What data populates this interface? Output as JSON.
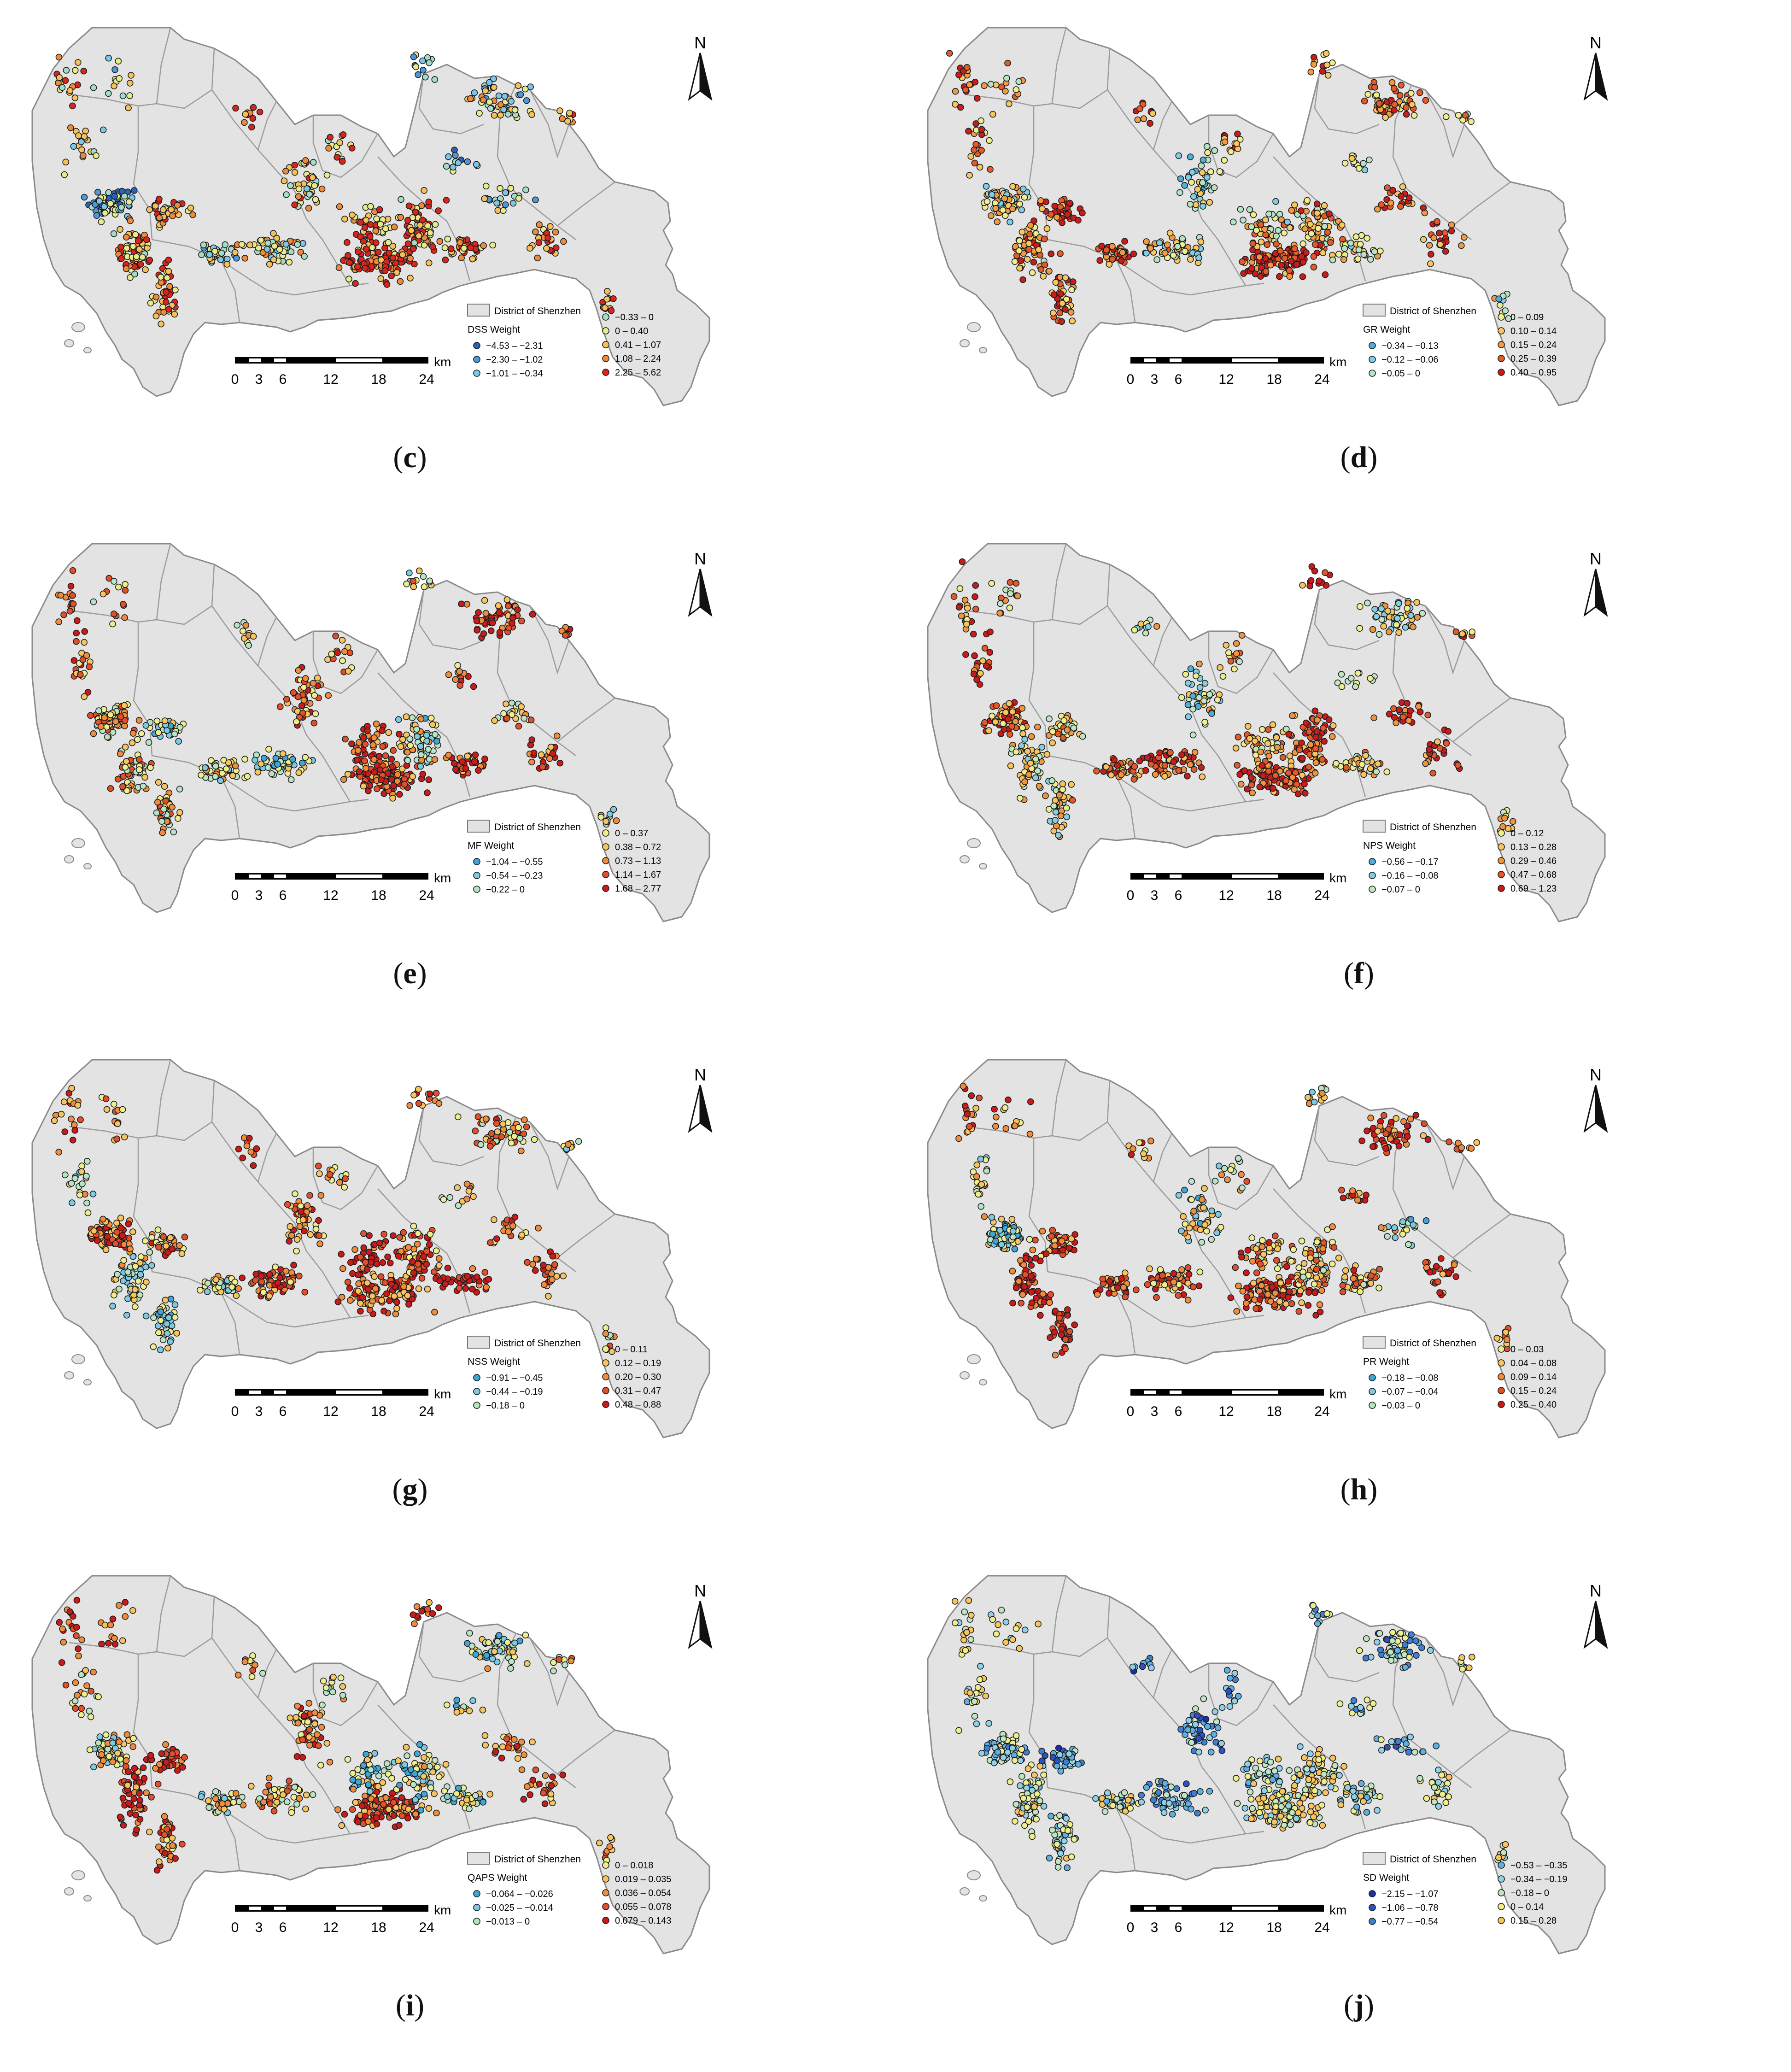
{
  "common": {
    "district_label": "District of Shenzhen",
    "scale_ticks": [
      "0",
      "3",
      "6",
      "12",
      "18",
      "24"
    ],
    "scale_unit": "km",
    "north_label": "N",
    "land_color": "#e3e3e3",
    "outline_color": "#8a8a8a"
  },
  "panels": [
    {
      "label": "c",
      "legend_title": "DSS Weight",
      "classes": [
        {
          "range": "−4.53 – −2.31",
          "color": "#2c62b8"
        },
        {
          "range": "−2.30 – −1.02",
          "color": "#4f97d6"
        },
        {
          "range": "−1.01 – −0.34",
          "color": "#7cc6ea"
        },
        {
          "range": "−0.33 – 0",
          "color": "#a3dcc7"
        },
        {
          "range": "0 – 0.40",
          "color": "#e7ec8a"
        },
        {
          "range": "0.41 – 1.07",
          "color": "#f6c15a"
        },
        {
          "range": "1.08 – 2.24",
          "color": "#ef8a3b"
        },
        {
          "range": "2.25 – 5.62",
          "color": "#d8261e"
        }
      ]
    },
    {
      "label": "d",
      "legend_title": "GR Weight",
      "classes": [
        {
          "range": "−0.34 – −0.13",
          "color": "#4fb0d8"
        },
        {
          "range": "−0.12 – −0.06",
          "color": "#7fcde6"
        },
        {
          "range": "−0.05 – 0",
          "color": "#b5e3c6"
        },
        {
          "range": "0 – 0.09",
          "color": "#eeee8c"
        },
        {
          "range": "0.10 – 0.14",
          "color": "#f7c760"
        },
        {
          "range": "0.15 – 0.24",
          "color": "#f09a44"
        },
        {
          "range": "0.25 – 0.39",
          "color": "#e35a2b"
        },
        {
          "range": "0.40 – 0.95",
          "color": "#c91d1d"
        }
      ]
    },
    {
      "label": "e",
      "legend_title": "MF Weight",
      "classes": [
        {
          "range": "−1.04 – −0.55",
          "color": "#3fa6d6"
        },
        {
          "range": "−0.54 – −0.23",
          "color": "#7ccbe3"
        },
        {
          "range": "−0.22 – 0",
          "color": "#b7e4c4"
        },
        {
          "range": "0 – 0.37",
          "color": "#eeee8c"
        },
        {
          "range": "0.38 – 0.72",
          "color": "#f7c45e"
        },
        {
          "range": "0.73 – 1.13",
          "color": "#ef8d3c"
        },
        {
          "range": "1.14 – 1.67",
          "color": "#e0502a"
        },
        {
          "range": "1.68 – 2.77",
          "color": "#c81b1b"
        }
      ]
    },
    {
      "label": "f",
      "legend_title": "NPS Weight",
      "classes": [
        {
          "range": "−0.56 – −0.17",
          "color": "#4ab0d8"
        },
        {
          "range": "−0.16 – −0.08",
          "color": "#85cfe4"
        },
        {
          "range": "−0.07 – 0",
          "color": "#bfe6c2"
        },
        {
          "range": "0 – 0.12",
          "color": "#eeee8c"
        },
        {
          "range": "0.13 – 0.28",
          "color": "#f7c45e"
        },
        {
          "range": "0.29 – 0.46",
          "color": "#ef953f"
        },
        {
          "range": "0.47 – 0.68",
          "color": "#e05a2c"
        },
        {
          "range": "0.69 – 1.23",
          "color": "#c81b1b"
        }
      ]
    },
    {
      "label": "g",
      "legend_title": "NSS Weight",
      "classes": [
        {
          "range": "−0.91 – −0.45",
          "color": "#3fa6d6"
        },
        {
          "range": "−0.44 – −0.19",
          "color": "#7ccbe3"
        },
        {
          "range": "−0.18 – 0",
          "color": "#b7e4c4"
        },
        {
          "range": "0 – 0.11",
          "color": "#eeee8c"
        },
        {
          "range": "0.12 – 0.19",
          "color": "#f7c45e"
        },
        {
          "range": "0.20 – 0.30",
          "color": "#ef8d3c"
        },
        {
          "range": "0.31 – 0.47",
          "color": "#e0502a"
        },
        {
          "range": "0.48 – 0.88",
          "color": "#c81b1b"
        }
      ]
    },
    {
      "label": "h",
      "legend_title": "PR Weight",
      "classes": [
        {
          "range": "−0.18 – −0.08",
          "color": "#3fa6d6"
        },
        {
          "range": "−0.07 – −0.04",
          "color": "#7ccbe3"
        },
        {
          "range": "−0.03 – 0",
          "color": "#b7e4c4"
        },
        {
          "range": "0 – 0.03",
          "color": "#eeee8c"
        },
        {
          "range": "0.04 – 0.08",
          "color": "#f7c45e"
        },
        {
          "range": "0.09 – 0.14",
          "color": "#ef8d3c"
        },
        {
          "range": "0.15 – 0.24",
          "color": "#e0502a"
        },
        {
          "range": "0.25 – 0.40",
          "color": "#c81b1b"
        }
      ]
    },
    {
      "label": "i",
      "legend_title": "QAPS Weight",
      "classes": [
        {
          "range": "−0.064 – −0.026",
          "color": "#3fa6d6"
        },
        {
          "range": "−0.025 – −0.014",
          "color": "#7ccbe3"
        },
        {
          "range": "−0.013 – 0",
          "color": "#b7e4c4"
        },
        {
          "range": "0 – 0.018",
          "color": "#eeee8c"
        },
        {
          "range": "0.019 – 0.035",
          "color": "#f7c45e"
        },
        {
          "range": "0.036 – 0.054",
          "color": "#ef8d3c"
        },
        {
          "range": "0.055 – 0.078",
          "color": "#e0502a"
        },
        {
          "range": "0.079 – 0.143",
          "color": "#c81b1b"
        }
      ]
    },
    {
      "label": "j",
      "legend_title": "SD Weight",
      "classes": [
        {
          "range": "−2.15 – −1.07",
          "color": "#1b2fa8"
        },
        {
          "range": "−1.06 – −0.78",
          "color": "#2a52c4"
        },
        {
          "range": "−0.77 – −0.54",
          "color": "#3f7fd8"
        },
        {
          "range": "−0.53 – −0.35",
          "color": "#5fb0e2"
        },
        {
          "range": "−0.34 – −0.19",
          "color": "#8fd2e8"
        },
        {
          "range": "−0.18 – 0",
          "color": "#bfe6c2"
        },
        {
          "range": "0 – 0.14",
          "color": "#eeee8c"
        },
        {
          "range": "0.15 – 0.28",
          "color": "#f7c45e"
        }
      ]
    }
  ]
}
